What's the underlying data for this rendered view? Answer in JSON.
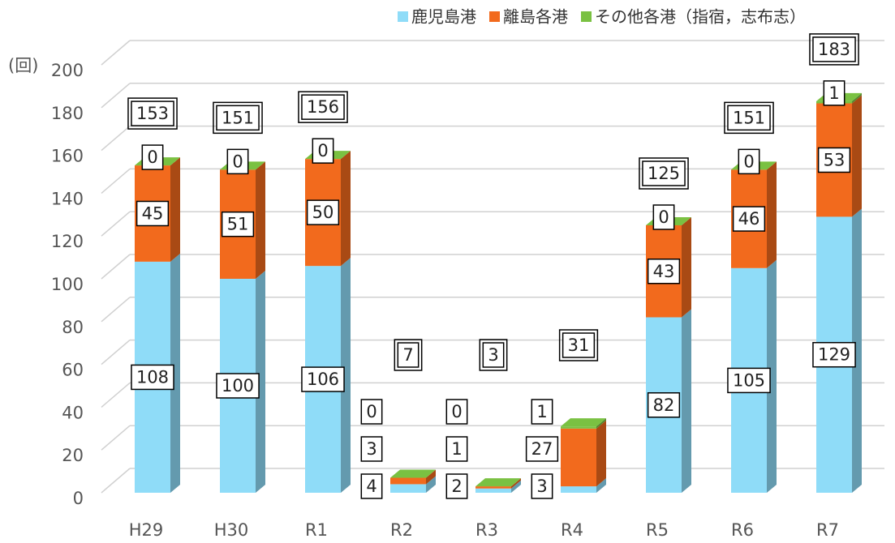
{
  "chart_data": {
    "type": "bar3d_stacked",
    "y_label": "(回)",
    "categories": [
      "H29",
      "H30",
      "R1",
      "R2",
      "R3",
      "R4",
      "R5",
      "R6",
      "R7"
    ],
    "series": [
      {
        "name": "鹿児島港",
        "color": "#8fdcf8",
        "values": [
          108,
          100,
          106,
          4,
          2,
          3,
          82,
          105,
          129
        ]
      },
      {
        "name": "離島各港",
        "color": "#f26a1d",
        "values": [
          45,
          51,
          50,
          3,
          1,
          27,
          43,
          46,
          53
        ]
      },
      {
        "name": "その他各港（指宿，志布志）",
        "color": "#7ac142",
        "values": [
          0,
          0,
          0,
          0,
          0,
          1,
          0,
          0,
          1
        ]
      }
    ],
    "totals": [
      153,
      151,
      156,
      7,
      3,
      31,
      125,
      151,
      183
    ],
    "ylim": [
      0,
      200
    ],
    "yticks": [
      0,
      20,
      40,
      60,
      80,
      100,
      120,
      140,
      160,
      180,
      200
    ],
    "grid": true
  }
}
